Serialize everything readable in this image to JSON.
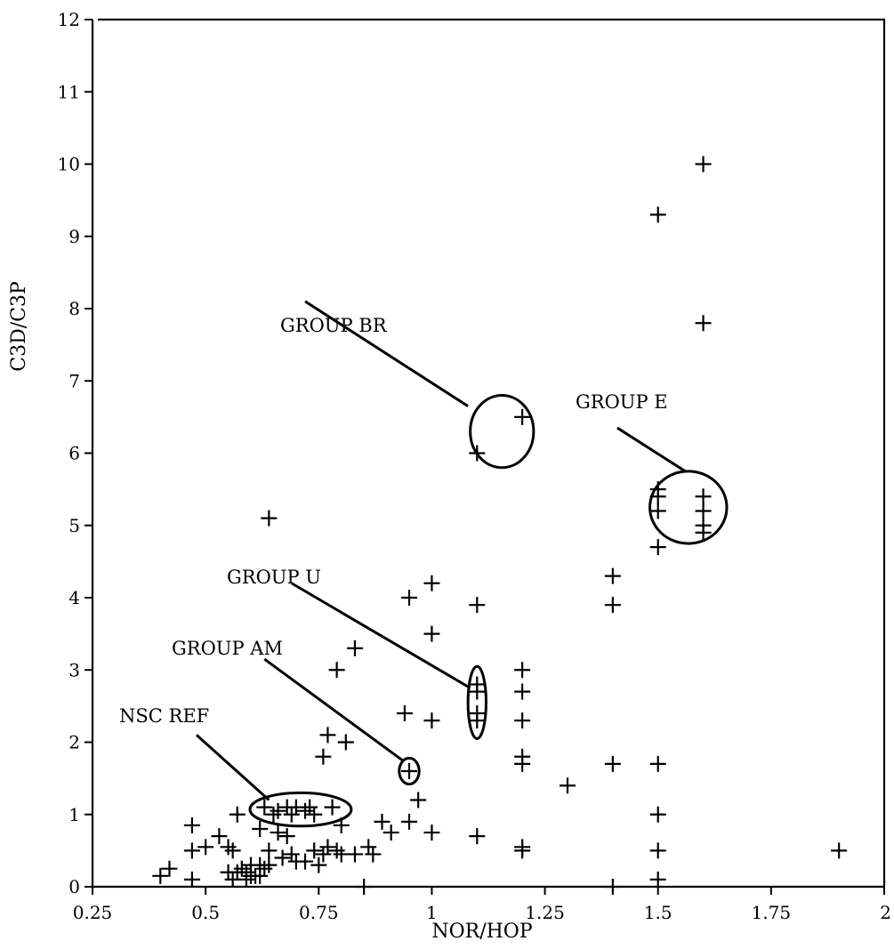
{
  "chart_data": {
    "type": "scatter",
    "xlabel": "NOR/HOP",
    "ylabel": "C3D/C3P",
    "xlim": [
      0.25,
      2
    ],
    "ylim": [
      0,
      12
    ],
    "x_ticks": [
      0.25,
      0.5,
      0.75,
      1,
      1.25,
      1.5,
      1.75,
      2
    ],
    "x_tick_labels": [
      "0.25",
      "0.5",
      "0.75",
      "1",
      "1.25",
      "1.5",
      "1.75",
      "2"
    ],
    "y_ticks": [
      0,
      1,
      2,
      3,
      4,
      5,
      6,
      7,
      8,
      9,
      10,
      11,
      12
    ],
    "y_tick_labels": [
      "0",
      "1",
      "2",
      "3",
      "4",
      "5",
      "6",
      "7",
      "8",
      "9",
      "10",
      "11",
      "12"
    ],
    "grid": false,
    "marker": "plus",
    "points": [
      [
        1.6,
        10.0
      ],
      [
        1.5,
        9.3
      ],
      [
        1.6,
        7.8
      ],
      [
        1.2,
        6.5
      ],
      [
        1.1,
        6.0
      ],
      [
        1.5,
        5.5
      ],
      [
        1.5,
        5.4
      ],
      [
        1.5,
        5.2
      ],
      [
        1.6,
        5.4
      ],
      [
        1.6,
        5.2
      ],
      [
        1.6,
        5.0
      ],
      [
        1.6,
        4.9
      ],
      [
        1.5,
        4.7
      ],
      [
        0.64,
        5.1
      ],
      [
        1.4,
        4.3
      ],
      [
        1.4,
        3.9
      ],
      [
        1.0,
        4.2
      ],
      [
        0.95,
        4.0
      ],
      [
        1.1,
        3.9
      ],
      [
        1.0,
        3.5
      ],
      [
        0.83,
        3.3
      ],
      [
        0.79,
        3.0
      ],
      [
        1.1,
        2.8
      ],
      [
        1.1,
        2.7
      ],
      [
        1.1,
        2.4
      ],
      [
        1.1,
        2.3
      ],
      [
        1.2,
        3.0
      ],
      [
        1.2,
        2.7
      ],
      [
        1.2,
        2.3
      ],
      [
        1.2,
        1.8
      ],
      [
        1.2,
        1.7
      ],
      [
        0.94,
        2.4
      ],
      [
        1.0,
        2.3
      ],
      [
        0.77,
        2.1
      ],
      [
        0.81,
        2.0
      ],
      [
        0.76,
        1.8
      ],
      [
        0.95,
        1.6
      ],
      [
        1.4,
        1.7
      ],
      [
        1.5,
        1.7
      ],
      [
        1.3,
        1.4
      ],
      [
        0.97,
        1.2
      ],
      [
        0.63,
        1.1
      ],
      [
        0.66,
        1.05
      ],
      [
        0.68,
        1.1
      ],
      [
        0.69,
        1.0
      ],
      [
        0.7,
        1.1
      ],
      [
        0.72,
        1.05
      ],
      [
        0.73,
        1.1
      ],
      [
        0.74,
        1.0
      ],
      [
        0.78,
        1.1
      ],
      [
        0.57,
        1.0
      ],
      [
        0.65,
        1.0
      ],
      [
        1.5,
        1.0
      ],
      [
        0.47,
        0.85
      ],
      [
        0.89,
        0.9
      ],
      [
        0.95,
        0.9
      ],
      [
        0.8,
        0.85
      ],
      [
        0.91,
        0.75
      ],
      [
        1.0,
        0.75
      ],
      [
        1.1,
        0.7
      ],
      [
        0.62,
        0.8
      ],
      [
        0.53,
        0.7
      ],
      [
        0.66,
        0.75
      ],
      [
        0.68,
        0.7
      ],
      [
        0.77,
        0.55
      ],
      [
        0.79,
        0.5
      ],
      [
        0.86,
        0.55
      ],
      [
        0.5,
        0.55
      ],
      [
        0.55,
        0.55
      ],
      [
        0.47,
        0.5
      ],
      [
        0.56,
        0.5
      ],
      [
        0.64,
        0.5
      ],
      [
        0.69,
        0.45
      ],
      [
        0.74,
        0.5
      ],
      [
        0.76,
        0.45
      ],
      [
        0.8,
        0.45
      ],
      [
        0.83,
        0.45
      ],
      [
        0.87,
        0.45
      ],
      [
        1.2,
        0.55
      ],
      [
        1.2,
        0.5
      ],
      [
        1.5,
        0.5
      ],
      [
        1.9,
        0.5
      ],
      [
        0.72,
        0.35
      ],
      [
        0.75,
        0.3
      ],
      [
        0.7,
        0.35
      ],
      [
        0.67,
        0.4
      ],
      [
        0.64,
        0.3
      ],
      [
        0.62,
        0.3
      ],
      [
        0.58,
        0.25
      ],
      [
        0.55,
        0.2
      ],
      [
        0.57,
        0.2
      ],
      [
        0.59,
        0.2
      ],
      [
        0.6,
        0.15
      ],
      [
        0.61,
        0.15
      ],
      [
        0.62,
        0.15
      ],
      [
        0.59,
        0.1
      ],
      [
        0.56,
        0.1
      ],
      [
        0.47,
        0.1
      ],
      [
        0.42,
        0.25
      ],
      [
        0.4,
        0.15
      ],
      [
        0.6,
        0.3
      ],
      [
        0.63,
        0.25
      ],
      [
        1.5,
        0.1
      ],
      [
        0.85,
        0.0
      ],
      [
        1.4,
        0.0
      ]
    ],
    "annotations": [
      {
        "text": "GROUP BR",
        "from": [
          0.72,
          8.1
        ],
        "to": [
          1.08,
          6.65
        ],
        "ellipse": {
          "cx": 1.155,
          "cy": 6.3,
          "rx": 0.07,
          "ry": 0.5
        }
      },
      {
        "text": "GROUP E",
        "from": [
          1.41,
          6.35
        ],
        "to": [
          1.56,
          5.75
        ],
        "ellipse": {
          "cx": 1.567,
          "cy": 5.25,
          "rx": 0.085,
          "ry": 0.5
        }
      },
      {
        "text": "GROUP U",
        "from": [
          0.69,
          4.2
        ],
        "to": [
          1.085,
          2.75
        ],
        "ellipse": {
          "cx": 1.1,
          "cy": 2.55,
          "rx": 0.02,
          "ry": 0.5
        }
      },
      {
        "text": "GROUP AM",
        "from": [
          0.63,
          3.15
        ],
        "to": [
          0.935,
          1.75
        ],
        "ellipse": {
          "cx": 0.95,
          "cy": 1.6,
          "rx": 0.022,
          "ry": 0.18
        }
      },
      {
        "text": "NSC REF",
        "from": [
          0.48,
          2.1
        ],
        "to": [
          0.64,
          1.2
        ],
        "ellipse": {
          "cx": 0.71,
          "cy": 1.07,
          "rx": 0.112,
          "ry": 0.23
        }
      }
    ]
  }
}
